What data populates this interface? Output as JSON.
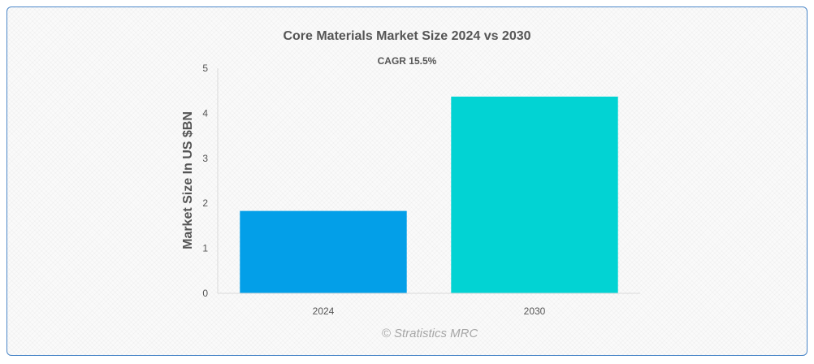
{
  "chart_data": {
    "type": "bar",
    "title": "Core Materials Market Size 2024 vs 2030",
    "subtitle": "CAGR 15.5%",
    "categories": [
      "2024",
      "2030"
    ],
    "values": [
      1.83,
      4.37
    ],
    "colors": [
      "#039fe8",
      "#02d3d3"
    ],
    "xlabel": "",
    "ylabel": "Market Size In US $BN",
    "ylim": [
      0,
      5
    ],
    "yticks": [
      0,
      1,
      2,
      3,
      4,
      5
    ],
    "grid": false,
    "legend": "none"
  },
  "credit": "© Stratistics MRC"
}
